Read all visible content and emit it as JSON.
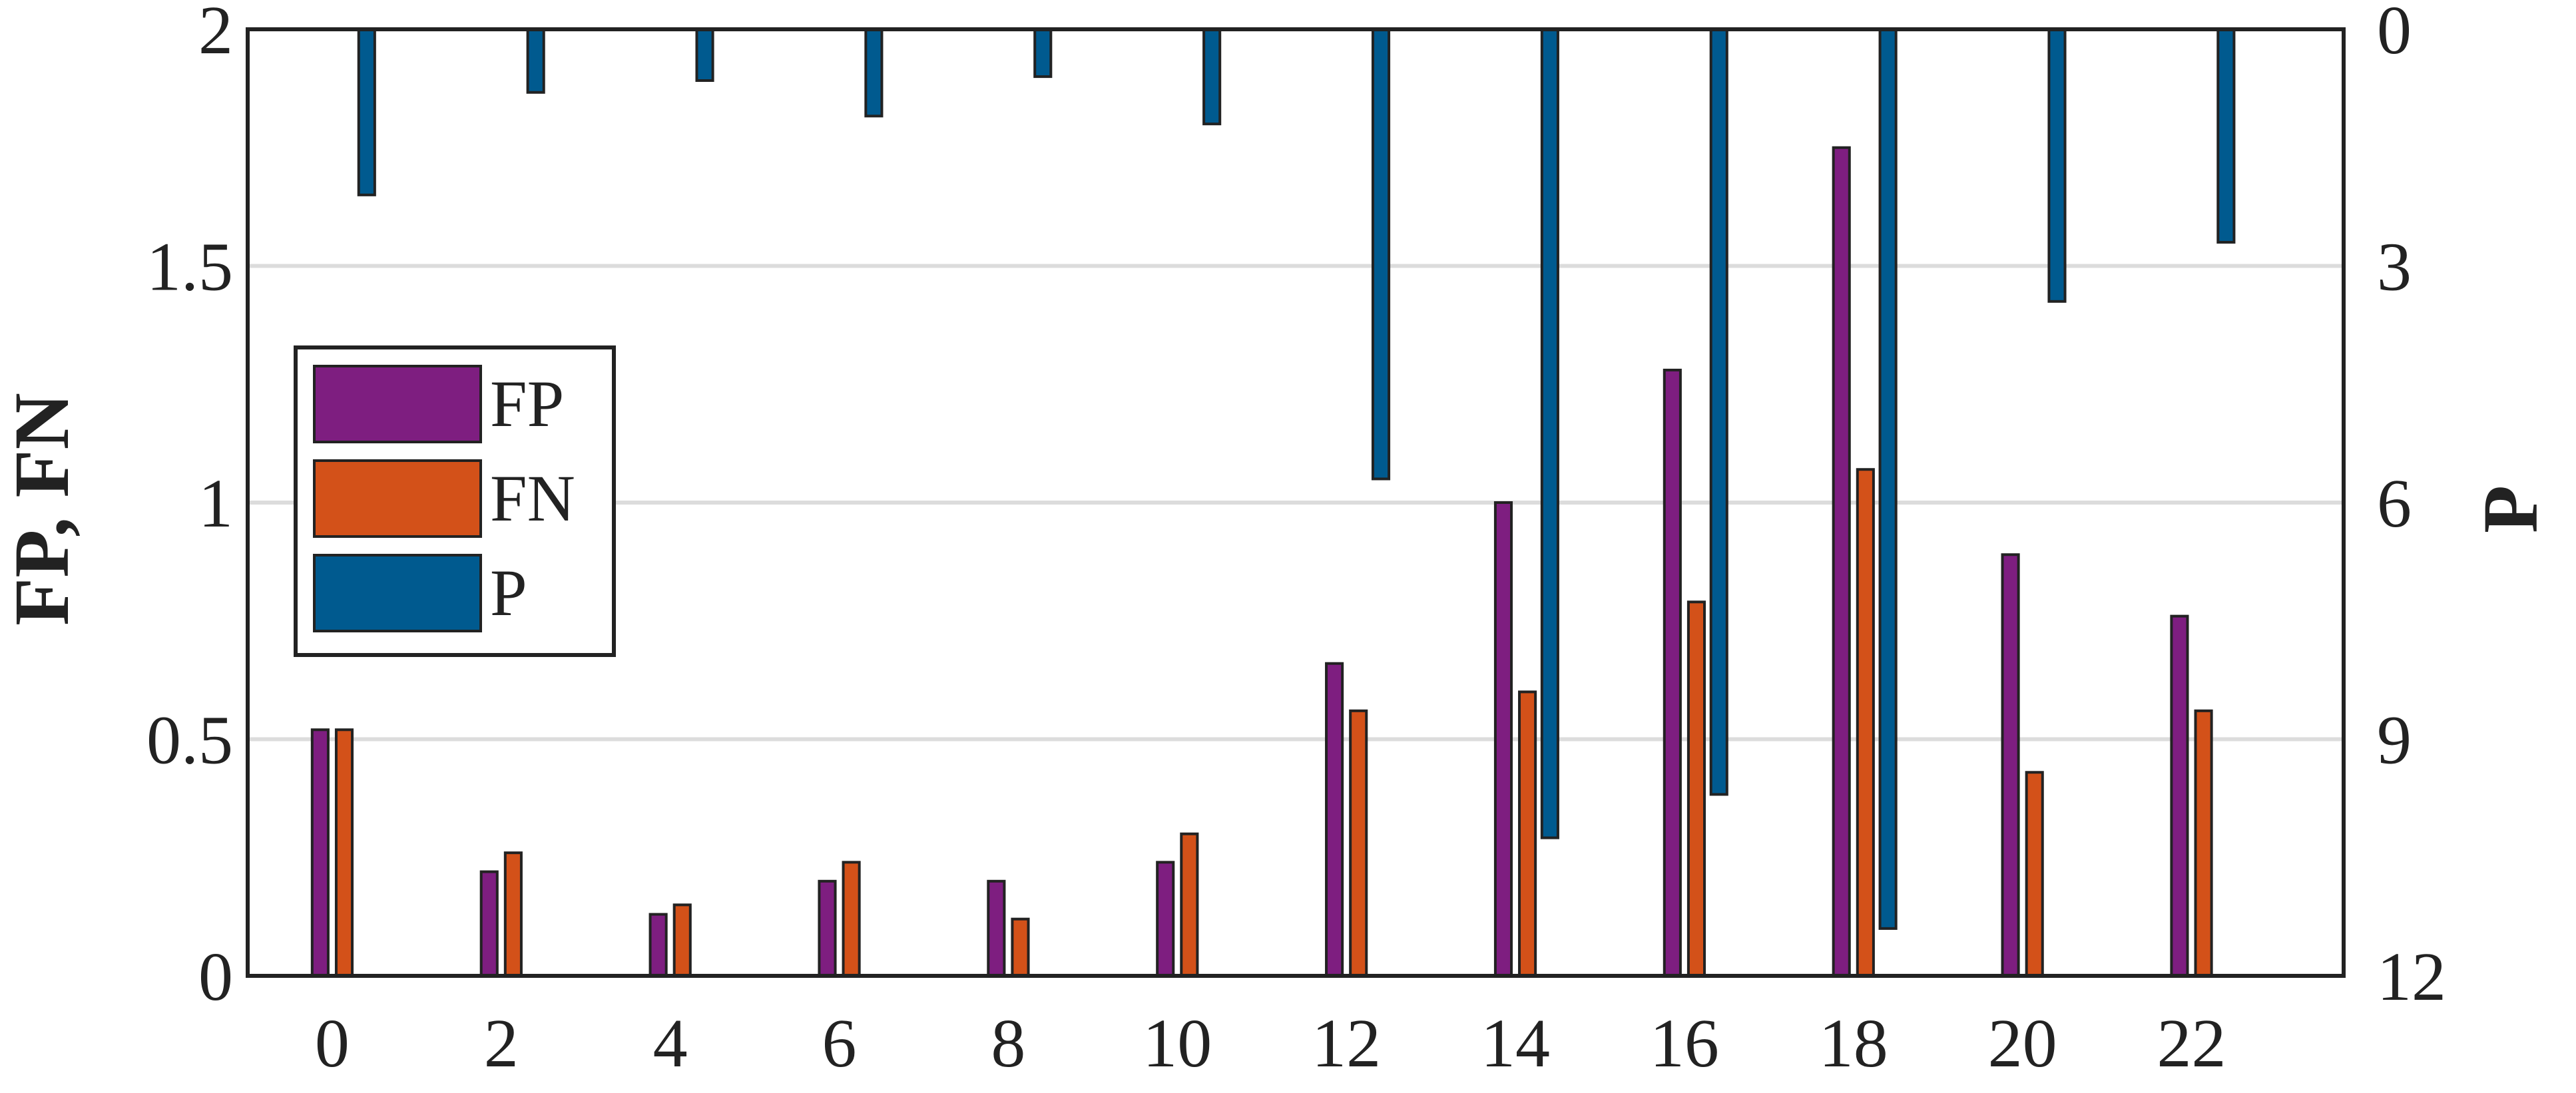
{
  "chart_data": {
    "type": "bar",
    "x_ticks": [
      "0",
      "2",
      "4",
      "6",
      "8",
      "10",
      "12",
      "14",
      "16",
      "18",
      "20",
      "22"
    ],
    "x": [
      0,
      2,
      4,
      6,
      8,
      10,
      12,
      14,
      16,
      18,
      20,
      22
    ],
    "xlim": [
      -1,
      23.8
    ],
    "y_left": {
      "label": "FP, FN",
      "lim": [
        0,
        2
      ],
      "ticks": [
        "0",
        "0.5",
        "1",
        "1.5",
        "2"
      ],
      "tick_values": [
        0,
        0.5,
        1,
        1.5,
        2
      ]
    },
    "y_right": {
      "label": "P",
      "lim": [
        0,
        12
      ],
      "inverted": true,
      "ticks": [
        "0",
        "3",
        "6",
        "9",
        "12"
      ],
      "tick_values": [
        0,
        3,
        6,
        9,
        12
      ]
    },
    "series": [
      {
        "name": "FP",
        "axis": "left",
        "color": "#7E1E80",
        "values": [
          0.52,
          0.22,
          0.13,
          0.2,
          0.2,
          0.24,
          0.66,
          1.0,
          1.28,
          1.75,
          0.89,
          0.76
        ]
      },
      {
        "name": "FN",
        "axis": "left",
        "color": "#D35119",
        "values": [
          0.52,
          0.26,
          0.15,
          0.24,
          0.12,
          0.3,
          0.56,
          0.6,
          0.79,
          1.07,
          0.43,
          0.56
        ]
      },
      {
        "name": "P",
        "axis": "right",
        "color": "#005A8F",
        "values": [
          2.1,
          0.8,
          0.65,
          1.1,
          0.6,
          1.2,
          5.7,
          10.25,
          9.7,
          11.4,
          3.45,
          2.7
        ]
      }
    ],
    "legend": {
      "position": "center-left",
      "entries": [
        "FP",
        "FN",
        "P"
      ]
    },
    "grid": {
      "horizontal": true,
      "vertical": false
    }
  }
}
